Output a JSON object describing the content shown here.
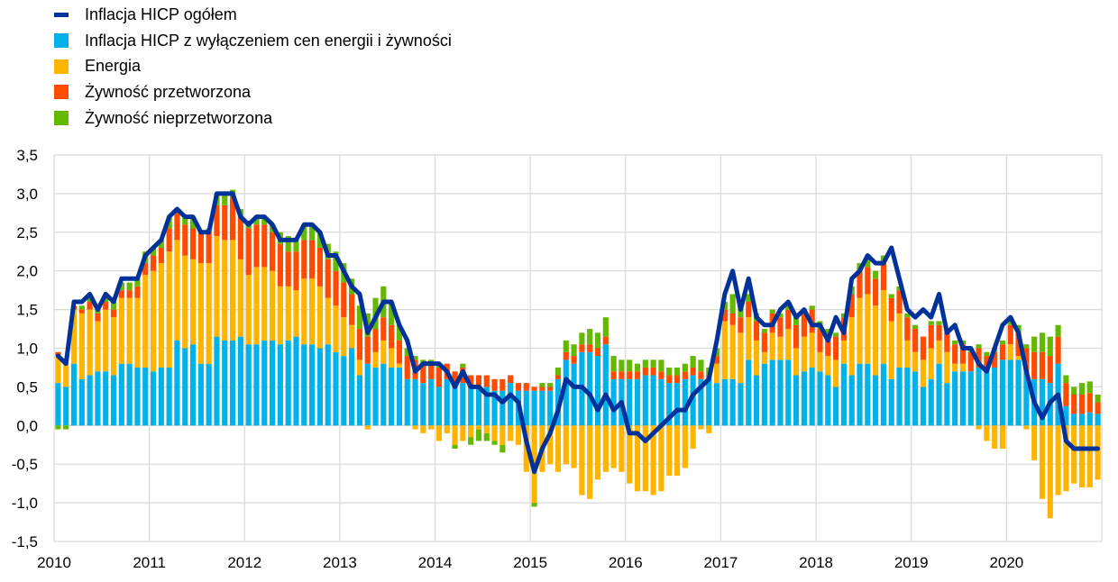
{
  "chart_data": {
    "type": "bar",
    "subtype": "stacked bar with line overlay, monthly",
    "title": "",
    "xlabel": "",
    "ylabel": "",
    "ylim": [
      -1.5,
      3.5
    ],
    "yticks": [
      3.5,
      3.0,
      2.5,
      2.0,
      1.5,
      1.0,
      0.5,
      0.0,
      -0.5,
      -1.0,
      -1.5
    ],
    "ytick_labels": [
      "3,5",
      "3,0",
      "2,5",
      "2,0",
      "1,5",
      "1,0",
      "0,5",
      "0,0",
      "-0,5",
      "-1,0",
      "-1,5"
    ],
    "xtick_labels": [
      "2010",
      "2011",
      "2012",
      "2013",
      "2014",
      "2015",
      "2016",
      "2017",
      "2018",
      "2019",
      "2020"
    ],
    "x_start": "2010-01",
    "x_end": "2020-12",
    "grid": true,
    "legend_position": "top-left",
    "series": [
      {
        "name": "Inflacja HICP ogółem",
        "kind": "line",
        "color": "#003299",
        "values": [
          0.9,
          0.8,
          1.6,
          1.6,
          1.7,
          1.5,
          1.7,
          1.6,
          1.9,
          1.9,
          1.9,
          2.2,
          2.3,
          2.4,
          2.7,
          2.8,
          2.7,
          2.7,
          2.5,
          2.5,
          3.0,
          3.0,
          3.0,
          2.7,
          2.6,
          2.7,
          2.7,
          2.6,
          2.4,
          2.4,
          2.4,
          2.6,
          2.6,
          2.5,
          2.2,
          2.2,
          2.0,
          1.8,
          1.7,
          1.2,
          1.4,
          1.6,
          1.6,
          1.3,
          1.1,
          0.7,
          0.8,
          0.8,
          0.8,
          0.7,
          0.5,
          0.7,
          0.5,
          0.5,
          0.4,
          0.4,
          0.3,
          0.4,
          0.3,
          -0.2,
          -0.6,
          -0.3,
          -0.1,
          0.2,
          0.6,
          0.5,
          0.5,
          0.4,
          0.2,
          0.4,
          0.2,
          0.3,
          -0.1,
          -0.1,
          -0.2,
          -0.1,
          0.0,
          0.1,
          0.2,
          0.2,
          0.4,
          0.5,
          0.6,
          1.1,
          1.7,
          2.0,
          1.5,
          1.9,
          1.4,
          1.3,
          1.3,
          1.5,
          1.6,
          1.4,
          1.5,
          1.3,
          1.3,
          1.1,
          1.4,
          1.2,
          1.9,
          2.0,
          2.2,
          2.1,
          2.1,
          2.3,
          1.9,
          1.5,
          1.4,
          1.5,
          1.4,
          1.7,
          1.2,
          1.3,
          1.0,
          1.0,
          0.8,
          0.7,
          1.0,
          1.3,
          1.4,
          1.2,
          0.7,
          0.3,
          0.1,
          0.3,
          0.4,
          -0.2,
          -0.3,
          -0.3,
          -0.3,
          -0.3
        ]
      },
      {
        "name": "Inflacja HICP z wyłączeniem cen energii i żywności",
        "kind": "bar",
        "color": "#00b1ea",
        "values": [
          0.55,
          0.5,
          0.8,
          0.6,
          0.65,
          0.7,
          0.7,
          0.65,
          0.8,
          0.8,
          0.75,
          0.75,
          0.7,
          0.75,
          0.75,
          1.1,
          1.0,
          1.05,
          0.8,
          0.8,
          1.15,
          1.1,
          1.1,
          1.15,
          1.05,
          1.05,
          1.1,
          1.1,
          1.05,
          1.1,
          1.15,
          1.05,
          1.05,
          1.0,
          1.05,
          0.95,
          0.9,
          1.0,
          0.65,
          0.8,
          0.75,
          0.8,
          0.75,
          0.75,
          0.6,
          0.6,
          0.55,
          0.6,
          0.5,
          0.6,
          0.55,
          0.55,
          0.5,
          0.5,
          0.5,
          0.45,
          0.45,
          0.55,
          0.45,
          0.45,
          0.45,
          0.45,
          0.45,
          0.6,
          0.85,
          0.8,
          0.95,
          0.95,
          0.9,
          1.05,
          0.6,
          0.6,
          0.6,
          0.6,
          0.65,
          0.65,
          0.6,
          0.55,
          0.55,
          0.6,
          0.65,
          0.6,
          0.6,
          0.55,
          0.6,
          0.6,
          0.55,
          0.85,
          0.65,
          0.8,
          0.85,
          0.85,
          0.85,
          0.65,
          0.7,
          0.75,
          0.7,
          0.65,
          0.5,
          0.8,
          0.65,
          0.8,
          0.8,
          0.65,
          0.8,
          0.6,
          0.75,
          0.75,
          0.7,
          0.5,
          0.6,
          0.8,
          0.55,
          0.7,
          0.7,
          0.7,
          0.75,
          0.7,
          0.75,
          0.85,
          0.85,
          0.85,
          0.7,
          0.6,
          0.6,
          0.55,
          0.8,
          0.25,
          0.15,
          0.15,
          0.17,
          0.15
        ]
      },
      {
        "name": "Energia",
        "kind": "bar",
        "color": "#ffb400",
        "values": [
          0.35,
          0.3,
          0.7,
          0.85,
          0.85,
          0.65,
          0.8,
          0.75,
          0.85,
          0.85,
          0.9,
          1.2,
          1.3,
          1.35,
          1.5,
          1.3,
          1.2,
          1.1,
          1.3,
          1.3,
          1.3,
          1.3,
          1.3,
          1.0,
          0.9,
          1.0,
          0.95,
          0.9,
          0.75,
          0.7,
          0.6,
          0.85,
          0.85,
          0.8,
          0.6,
          0.6,
          0.5,
          0.3,
          0.2,
          -0.05,
          0.2,
          0.3,
          0.25,
          0.05,
          0.0,
          -0.05,
          -0.1,
          -0.05,
          -0.2,
          -0.1,
          -0.25,
          -0.2,
          -0.15,
          -0.05,
          -0.1,
          -0.2,
          -0.25,
          -0.2,
          -0.25,
          -0.6,
          -1.0,
          -0.6,
          -0.5,
          -0.6,
          -0.5,
          -0.55,
          -0.9,
          -0.95,
          -0.7,
          -0.6,
          -0.55,
          -0.6,
          -0.75,
          -0.85,
          -0.85,
          -0.9,
          -0.85,
          -0.65,
          -0.65,
          -0.55,
          -0.3,
          -0.05,
          -0.1,
          0.25,
          0.75,
          0.7,
          0.65,
          0.55,
          0.45,
          0.15,
          0.35,
          0.3,
          0.4,
          0.35,
          0.45,
          0.45,
          0.25,
          0.25,
          0.35,
          0.3,
          0.75,
          0.85,
          0.9,
          0.9,
          0.95,
          0.75,
          0.7,
          0.35,
          0.25,
          0.35,
          0.4,
          0.3,
          0.4,
          0.1,
          0.1,
          0.0,
          -0.05,
          -0.2,
          -0.3,
          -0.3,
          0.2,
          0.05,
          -0.05,
          -0.45,
          -0.95,
          -1.2,
          -0.9,
          -0.85,
          -0.75,
          -0.8,
          -0.8,
          -0.7
        ]
      },
      {
        "name": "Żywność przetworzona",
        "kind": "bar",
        "color": "#ff4b00",
        "values": [
          0.05,
          0,
          0.05,
          0.05,
          0.1,
          0.1,
          0.1,
          0.1,
          0.1,
          0.1,
          0.15,
          0.15,
          0.2,
          0.2,
          0.3,
          0.4,
          0.4,
          0.4,
          0.4,
          0.4,
          0.4,
          0.45,
          0.55,
          0.55,
          0.6,
          0.55,
          0.55,
          0.5,
          0.55,
          0.45,
          0.5,
          0.5,
          0.5,
          0.5,
          0.5,
          0.45,
          0.45,
          0.4,
          0.4,
          0.35,
          0.3,
          0.3,
          0.3,
          0.3,
          0.3,
          0.25,
          0.25,
          0.2,
          0.25,
          0.2,
          0.15,
          0.2,
          0.15,
          0.15,
          0.15,
          0.15,
          0.15,
          0.1,
          0.1,
          0.1,
          0.05,
          0.05,
          0.05,
          0.05,
          0.1,
          0.1,
          0.1,
          0.1,
          0.1,
          0.1,
          0.1,
          0.1,
          0.1,
          0.1,
          0.1,
          0.1,
          0.1,
          0.1,
          0.1,
          0.1,
          0.1,
          0.1,
          0.05,
          0.1,
          0.15,
          0.15,
          0.2,
          0.2,
          0.25,
          0.25,
          0.25,
          0.25,
          0.25,
          0.3,
          0.3,
          0.3,
          0.3,
          0.3,
          0.3,
          0.3,
          0.3,
          0.35,
          0.35,
          0.35,
          0.35,
          0.3,
          0.3,
          0.3,
          0.3,
          0.3,
          0.3,
          0.2,
          0.25,
          0.25,
          0.25,
          0.25,
          0.25,
          0.2,
          0.2,
          0.2,
          0.25,
          0.3,
          0.3,
          0.35,
          0.35,
          0.35,
          0.35,
          0.3,
          0.25,
          0.25,
          0.25,
          0.15
        ]
      },
      {
        "name": "Żywność nieprzetworzona",
        "kind": "bar",
        "color": "#65b800",
        "values": [
          -0.05,
          -0.05,
          0,
          0.05,
          0.05,
          0.05,
          0.1,
          0.1,
          0.1,
          0.1,
          0.1,
          0.15,
          0.1,
          0.1,
          0.15,
          0.0,
          0.1,
          0.15,
          0.0,
          0.05,
          0.15,
          0.15,
          0.1,
          0.1,
          0.1,
          0.1,
          0.1,
          0.1,
          0.15,
          0.2,
          0.15,
          0.2,
          0.2,
          0.2,
          0.2,
          0.25,
          0.25,
          0.2,
          0.3,
          0.3,
          0.4,
          0.4,
          0.3,
          0.2,
          0.1,
          0.05,
          0.05,
          0.05,
          0.05,
          0.0,
          -0.05,
          0.05,
          -0.1,
          -0.15,
          -0.1,
          -0.05,
          -0.1,
          0.0,
          0.0,
          0.0,
          -0.05,
          0.05,
          0.05,
          0.1,
          0.15,
          0.15,
          0.15,
          0.2,
          0.2,
          0.25,
          0.2,
          0.15,
          0.15,
          0.1,
          0.1,
          0.1,
          0.15,
          0.1,
          0.1,
          0.1,
          0.15,
          0.15,
          0.1,
          0.1,
          0.1,
          0.25,
          0.2,
          0.1,
          0.1,
          0.05,
          0.05,
          0.05,
          0.1,
          0.1,
          0.05,
          0.05,
          0.1,
          0.05,
          0.05,
          0.05,
          0.1,
          0.1,
          0.1,
          0.1,
          0.1,
          0.05,
          0.05,
          0.05,
          0.05,
          0.0,
          0.05,
          0.05,
          0.05,
          0.05,
          0.05,
          0.05,
          0.05,
          0.05,
          0.05,
          0.05,
          0.1,
          0.1,
          0.05,
          0.2,
          0.25,
          0.25,
          0.15,
          0.1,
          0.1,
          0.15,
          0.15,
          0.1
        ]
      }
    ]
  }
}
